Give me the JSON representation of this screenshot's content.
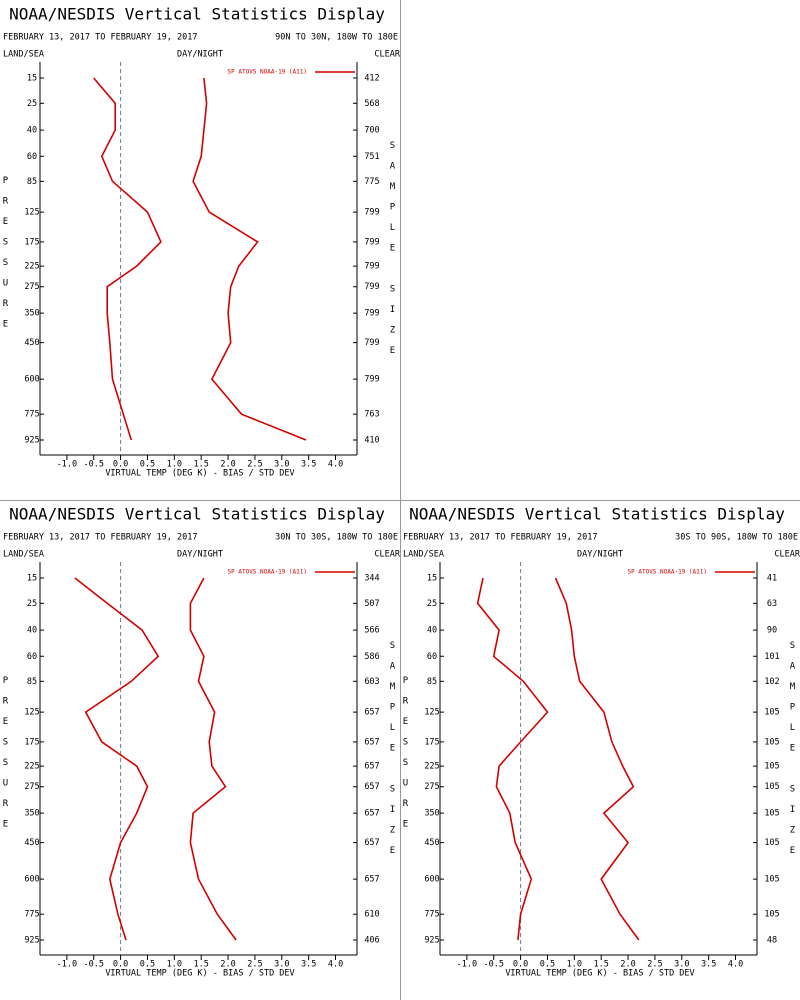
{
  "chart_data": [
    {
      "type": "line",
      "title": "NOAA/NESDIS Vertical Statistics Display",
      "date_range": "FEBRUARY 13, 2017 TO FEBRUARY 19, 2017",
      "region": "90N TO 30N, 180W TO 180E",
      "land_sea": "LAND/SEA",
      "day_night": "DAY/NIGHT",
      "clear": "CLEAR",
      "ylabel": "PRESSURE",
      "y2label": "SAMPLE SIZE",
      "xlabel": "VIRTUAL TEMP (DEG K) - BIAS / STD DEV",
      "y": [
        15,
        25,
        40,
        60,
        85,
        125,
        175,
        225,
        275,
        350,
        450,
        600,
        775,
        925
      ],
      "yscale": "power",
      "yexponent": 0.286,
      "sample_size": [
        412,
        568,
        700,
        751,
        775,
        799,
        799,
        799,
        799,
        799,
        799,
        799,
        763,
        410
      ],
      "series": [
        {
          "name": "SP ATOVS NOAA-19 (A11)",
          "color": "#d40000",
          "values": [
            -0.5,
            -0.1,
            -0.1,
            -0.35,
            -0.15,
            0.5,
            0.75,
            0.3,
            -0.25,
            -0.25,
            -0.2,
            -0.15,
            0.05,
            0.2
          ]
        },
        {
          "color": "#d40000",
          "values": [
            1.55,
            1.6,
            1.55,
            1.5,
            1.35,
            1.65,
            2.55,
            2.2,
            2.05,
            2.0,
            2.05,
            1.7,
            2.25,
            3.45
          ]
        }
      ],
      "xlim": [
        -1.5,
        4.4
      ],
      "xticks": [
        {
          "value": -1,
          "label": "-1.0"
        },
        -0.5,
        {
          "value": 0,
          "label": "0.0"
        },
        0.5,
        {
          "value": 1,
          "label": "1.0"
        },
        1.5,
        {
          "value": 2,
          "label": "2.0"
        },
        2.5,
        {
          "value": 3,
          "label": "3.0"
        },
        3.5,
        {
          "value": 4,
          "label": "4.0"
        }
      ]
    },
    {
      "type": "line",
      "title": "NOAA/NESDIS Vertical Statistics Display",
      "date_range": "FEBRUARY 13, 2017 TO FEBRUARY 19, 2017",
      "region": "30N TO 30S, 180W TO 180E",
      "land_sea": "LAND/SEA",
      "day_night": "DAY/NIGHT",
      "clear": "CLEAR",
      "ylabel": "PRESSURE",
      "y2label": "SAMPLE SIZE",
      "xlabel": "VIRTUAL TEMP (DEG K) - BIAS / STD DEV",
      "y": [
        15,
        25,
        40,
        60,
        85,
        125,
        175,
        225,
        275,
        350,
        450,
        600,
        775,
        925
      ],
      "yscale": "power",
      "yexponent": 0.286,
      "sample_size": [
        344,
        507,
        566,
        586,
        603,
        657,
        657,
        657,
        657,
        657,
        657,
        657,
        610,
        406
      ],
      "series": [
        {
          "name": "SP ATOVS NOAA-19 (A11)",
          "color": "#d40000",
          "values": [
            -0.85,
            -0.25,
            0.4,
            0.7,
            0.2,
            -0.65,
            -0.35,
            0.3,
            0.5,
            0.3,
            0.0,
            -0.2,
            -0.05,
            0.1
          ]
        },
        {
          "color": "#d40000",
          "values": [
            1.55,
            1.3,
            1.3,
            1.55,
            1.45,
            1.75,
            1.65,
            1.7,
            1.95,
            1.35,
            1.3,
            1.45,
            1.8,
            2.15
          ]
        }
      ],
      "xlim": [
        -1.5,
        4.4
      ],
      "xticks": [
        {
          "value": -1,
          "label": "-1.0"
        },
        -0.5,
        {
          "value": 0,
          "label": "0.0"
        },
        0.5,
        {
          "value": 1,
          "label": "1.0"
        },
        1.5,
        {
          "value": 2,
          "label": "2.0"
        },
        2.5,
        {
          "value": 3,
          "label": "3.0"
        },
        3.5,
        {
          "value": 4,
          "label": "4.0"
        }
      ]
    },
    {
      "type": "line",
      "title": "NOAA/NESDIS Vertical Statistics Display",
      "date_range": "FEBRUARY 13, 2017 TO FEBRUARY 19, 2017",
      "region": "30S TO 90S, 180W TO 180E",
      "land_sea": "LAND/SEA",
      "day_night": "DAY/NIGHT",
      "clear": "CLEAR",
      "ylabel": "PRESSURE",
      "y2label": "SAMPLE SIZE",
      "xlabel": "VIRTUAL TEMP (DEG K) - BIAS / STD DEV",
      "y": [
        15,
        25,
        40,
        60,
        85,
        125,
        175,
        225,
        275,
        350,
        450,
        600,
        775,
        925
      ],
      "yscale": "power",
      "yexponent": 0.286,
      "sample_size": [
        41,
        63,
        90,
        101,
        102,
        105,
        105,
        105,
        105,
        105,
        105,
        105,
        105,
        48
      ],
      "series": [
        {
          "name": "SP ATOVS NOAA-19 (A11)",
          "color": "#d40000",
          "values": [
            -0.7,
            -0.8,
            -0.4,
            -0.5,
            0.05,
            0.5,
            0.0,
            -0.4,
            -0.45,
            -0.2,
            -0.1,
            0.2,
            0.0,
            -0.05
          ]
        },
        {
          "color": "#d40000",
          "values": [
            0.65,
            0.85,
            0.95,
            1.0,
            1.1,
            1.55,
            1.7,
            1.9,
            2.1,
            1.55,
            2.0,
            1.5,
            1.85,
            2.2
          ]
        }
      ],
      "xlim": [
        -1.5,
        4.4
      ],
      "xticks": [
        {
          "value": -1,
          "label": "-1.0"
        },
        -0.5,
        {
          "value": 0,
          "label": "0.0"
        },
        0.5,
        {
          "value": 1,
          "label": "1.0"
        },
        1.5,
        {
          "value": 2,
          "label": "2.0"
        },
        2.5,
        {
          "value": 3,
          "label": "3.0"
        },
        3.5,
        {
          "value": 4,
          "label": "4.0"
        }
      ]
    }
  ]
}
